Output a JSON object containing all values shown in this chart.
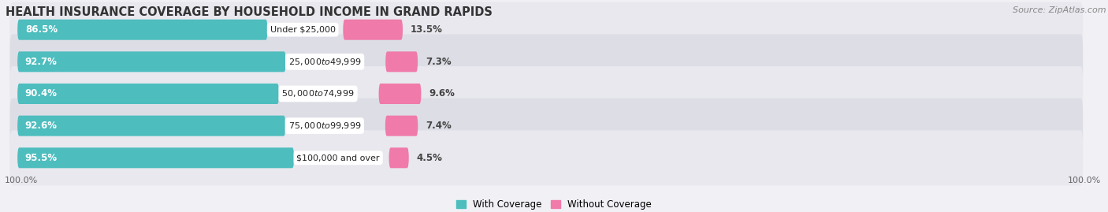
{
  "title": "HEALTH INSURANCE COVERAGE BY HOUSEHOLD INCOME IN GRAND RAPIDS",
  "source": "Source: ZipAtlas.com",
  "categories": [
    "Under $25,000",
    "$25,000 to $49,999",
    "$50,000 to $74,999",
    "$75,000 to $99,999",
    "$100,000 and over"
  ],
  "with_coverage": [
    86.5,
    92.7,
    90.4,
    92.6,
    95.5
  ],
  "without_coverage": [
    13.5,
    7.3,
    9.6,
    7.4,
    4.5
  ],
  "color_with": "#4dbdbe",
  "color_without": "#f07aaa",
  "color_bg_bar_odd": "#e8e8ee",
  "color_bg_bar_even": "#dddde6",
  "bar_height": 0.72,
  "legend_with": "With Coverage",
  "legend_without": "Without Coverage",
  "title_fontsize": 10.5,
  "source_fontsize": 8,
  "bar_label_fontsize": 8.5,
  "cat_label_fontsize": 8,
  "axis_label_fontsize": 8,
  "background_color": "#f0f0f5",
  "bar_scale": 0.5,
  "total_width": 100
}
